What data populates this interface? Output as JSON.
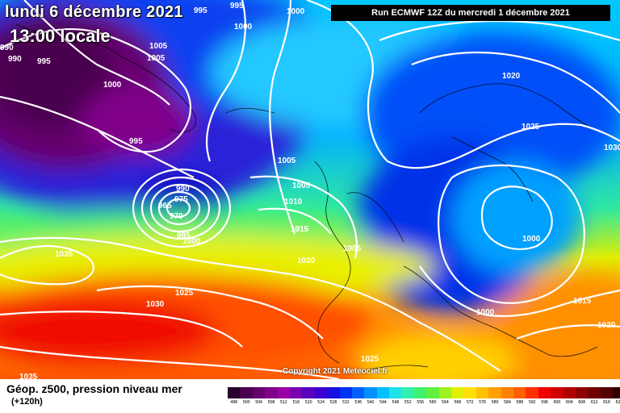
{
  "header": {
    "date_text": "lundi 6 décembre 2021",
    "time_text": "13:00 locale",
    "run_text": "Run ECMWF 12Z du mercredi 1 décembre 2021"
  },
  "copyright": "Copyright 2021 Meteociel.fr",
  "legend": {
    "title": "Géop. z500, pression niveau mer",
    "subtitle": "(+120h)",
    "scale": [
      {
        "value": "496",
        "color": "#2a0030"
      },
      {
        "value": "500",
        "color": "#4a0050"
      },
      {
        "value": "504",
        "color": "#66006e"
      },
      {
        "value": "508",
        "color": "#80008a"
      },
      {
        "value": "512",
        "color": "#9a00a6"
      },
      {
        "value": "516",
        "color": "#7a00b0"
      },
      {
        "value": "520",
        "color": "#5a00c0"
      },
      {
        "value": "524",
        "color": "#3a00d0"
      },
      {
        "value": "528",
        "color": "#1a10e0"
      },
      {
        "value": "532",
        "color": "#0030f0"
      },
      {
        "value": "536",
        "color": "#0060ff"
      },
      {
        "value": "540",
        "color": "#0090ff"
      },
      {
        "value": "544",
        "color": "#00c0ff"
      },
      {
        "value": "548",
        "color": "#20e0e8"
      },
      {
        "value": "552",
        "color": "#30f0b0"
      },
      {
        "value": "556",
        "color": "#40f070"
      },
      {
        "value": "560",
        "color": "#60f040"
      },
      {
        "value": "564",
        "color": "#a0f020"
      },
      {
        "value": "568",
        "color": "#e0f000"
      },
      {
        "value": "572",
        "color": "#ffe000"
      },
      {
        "value": "576",
        "color": "#ffc000"
      },
      {
        "value": "580",
        "color": "#ffa000"
      },
      {
        "value": "584",
        "color": "#ff8000"
      },
      {
        "value": "588",
        "color": "#ff6000"
      },
      {
        "value": "592",
        "color": "#ff3000"
      },
      {
        "value": "596",
        "color": "#f00000"
      },
      {
        "value": "600",
        "color": "#d00000"
      },
      {
        "value": "604",
        "color": "#b00000"
      },
      {
        "value": "608",
        "color": "#900000"
      },
      {
        "value": "612",
        "color": "#700000"
      },
      {
        "value": "616",
        "color": "#500000"
      },
      {
        "value": "620",
        "color": "#300000"
      }
    ]
  },
  "isobar_labels": [
    "990",
    "990",
    "995",
    "995",
    "995",
    "1000",
    "1005",
    "1005",
    "1000",
    "995",
    "1000",
    "1005",
    "1005",
    "1010",
    "1015",
    "990",
    "975",
    "965",
    "970",
    "985",
    "1000",
    "1015",
    "1020",
    "1025",
    "1030",
    "1035",
    "1035",
    "1020",
    "1025",
    "1030",
    "1005",
    "1000",
    "1000",
    "1015",
    "1020",
    "1025"
  ]
}
